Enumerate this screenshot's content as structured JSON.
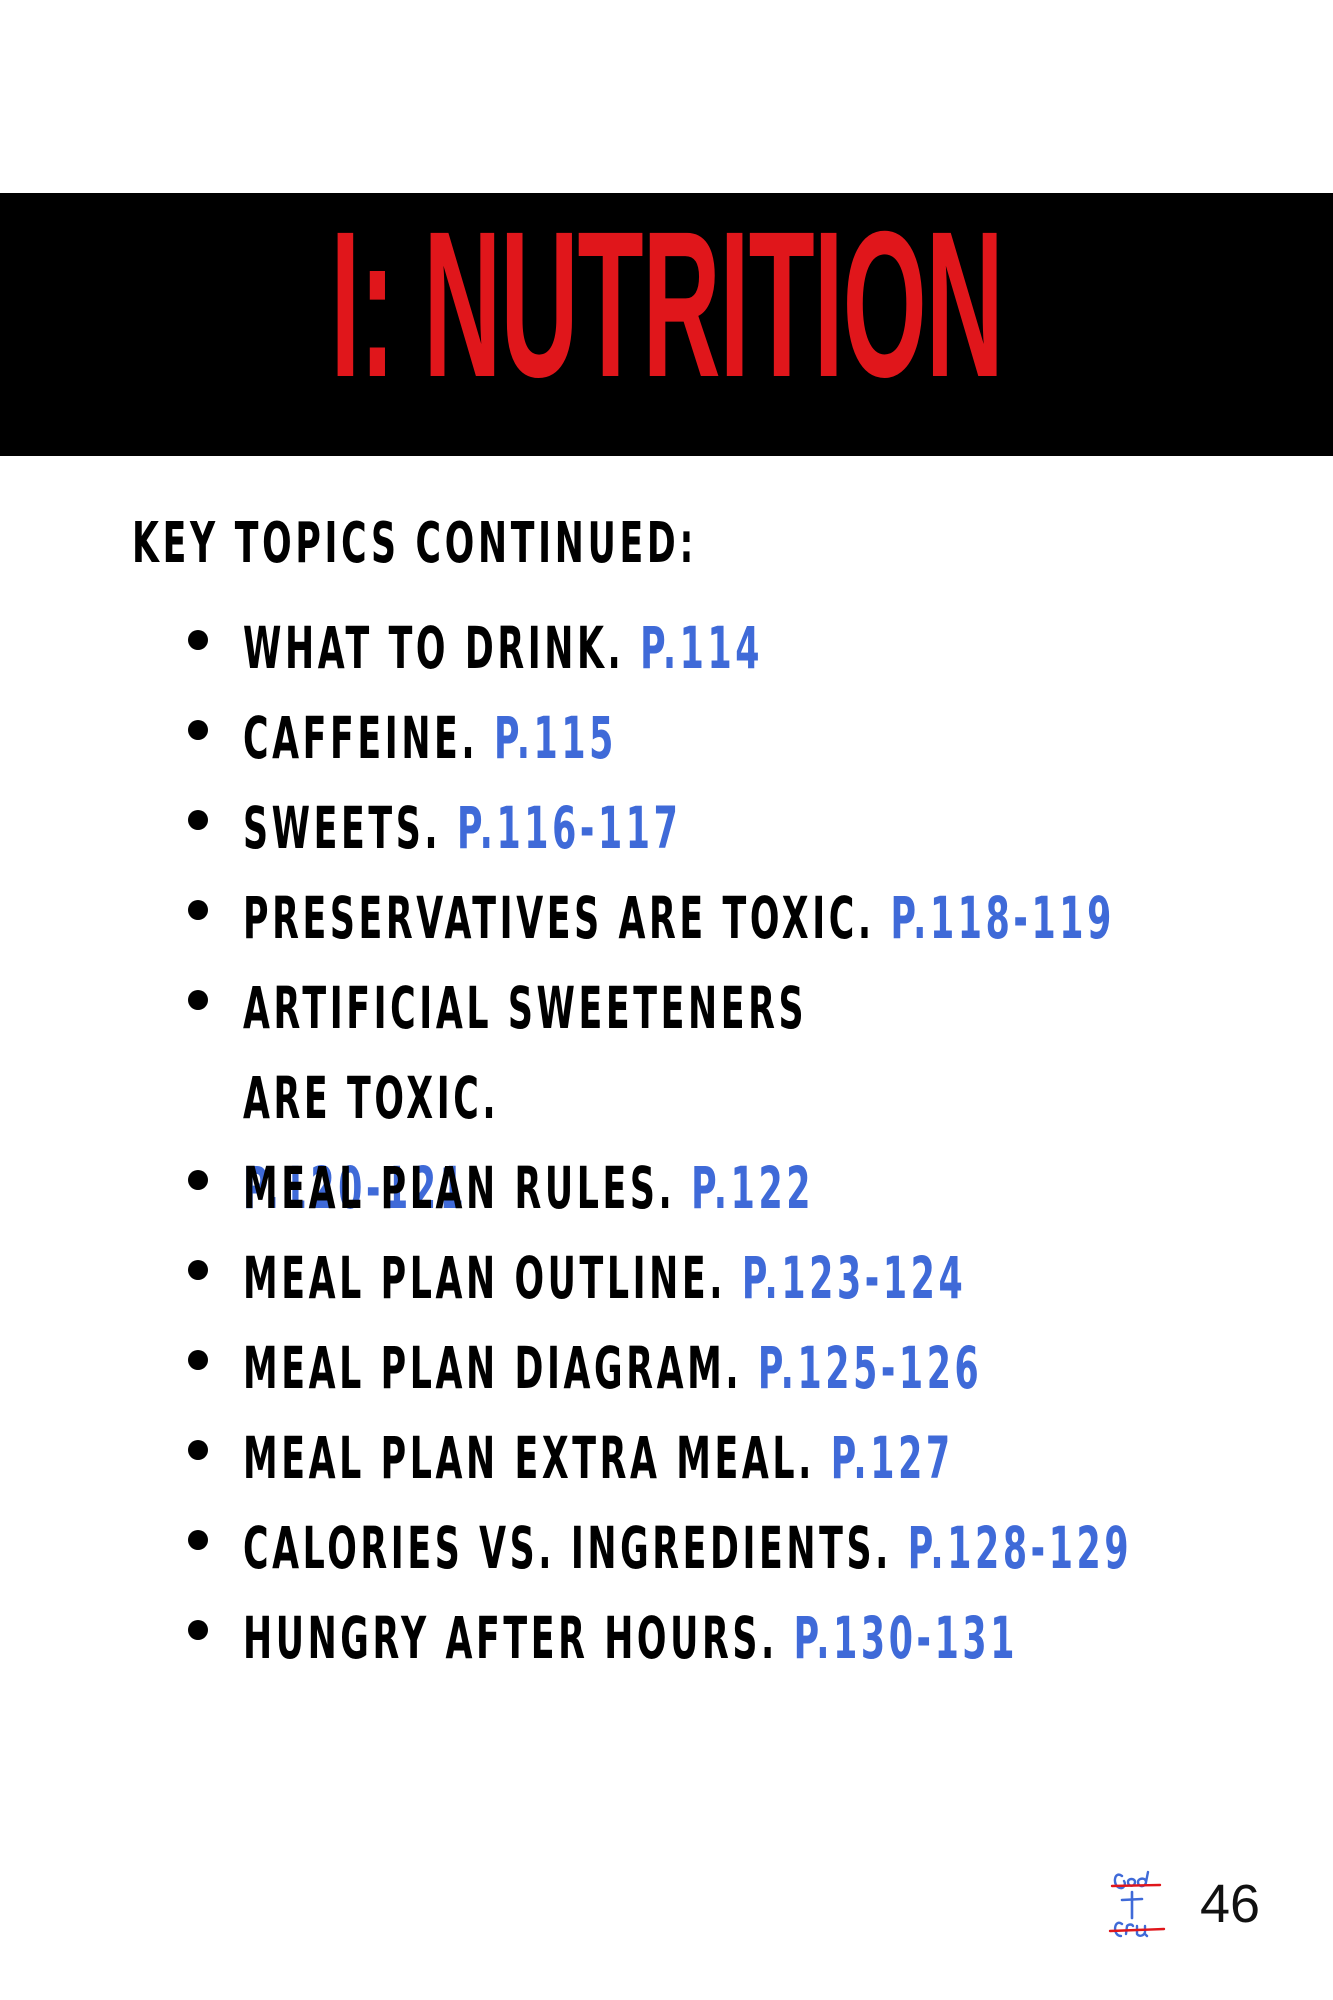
{
  "section_title": "I: NUTRITION",
  "subheading": "KEY TOPICS CONTINUED:",
  "topics": [
    {
      "label": "WHAT TO DRINK.",
      "page": "P.114"
    },
    {
      "label": "CAFFEINE.",
      "page": "P.115"
    },
    {
      "label": "SWEETS.",
      "page": "P.116-117"
    },
    {
      "label": "PRESERVATIVES ARE TOXIC.",
      "page": "P.118-119"
    },
    {
      "label": "ARTIFICIAL SWEETENERS ARE TOXIC.",
      "page": "P.120-121"
    },
    {
      "label": "MEAL PLAN RULES.",
      "page": "P.122"
    },
    {
      "label": "MEAL PLAN OUTLINE.",
      "page": "P.123-124"
    },
    {
      "label": "MEAL PLAN DIAGRAM.",
      "page": "P.125-126"
    },
    {
      "label": "MEAL PLAN EXTRA MEAL.",
      "page": "P.127"
    },
    {
      "label": "CALORIES VS. INGREDIENTS.",
      "page": "P.128-129"
    },
    {
      "label": "HUNGRY AFTER HOURS.",
      "page": "P.130-131"
    }
  ],
  "page_number": "46",
  "colors": {
    "title_red": "#e0161b",
    "banner_black": "#000000",
    "page_ref_blue": "#3f6ad8"
  },
  "icons": {
    "footer_logo": "god-first-gru-logo-icon"
  }
}
